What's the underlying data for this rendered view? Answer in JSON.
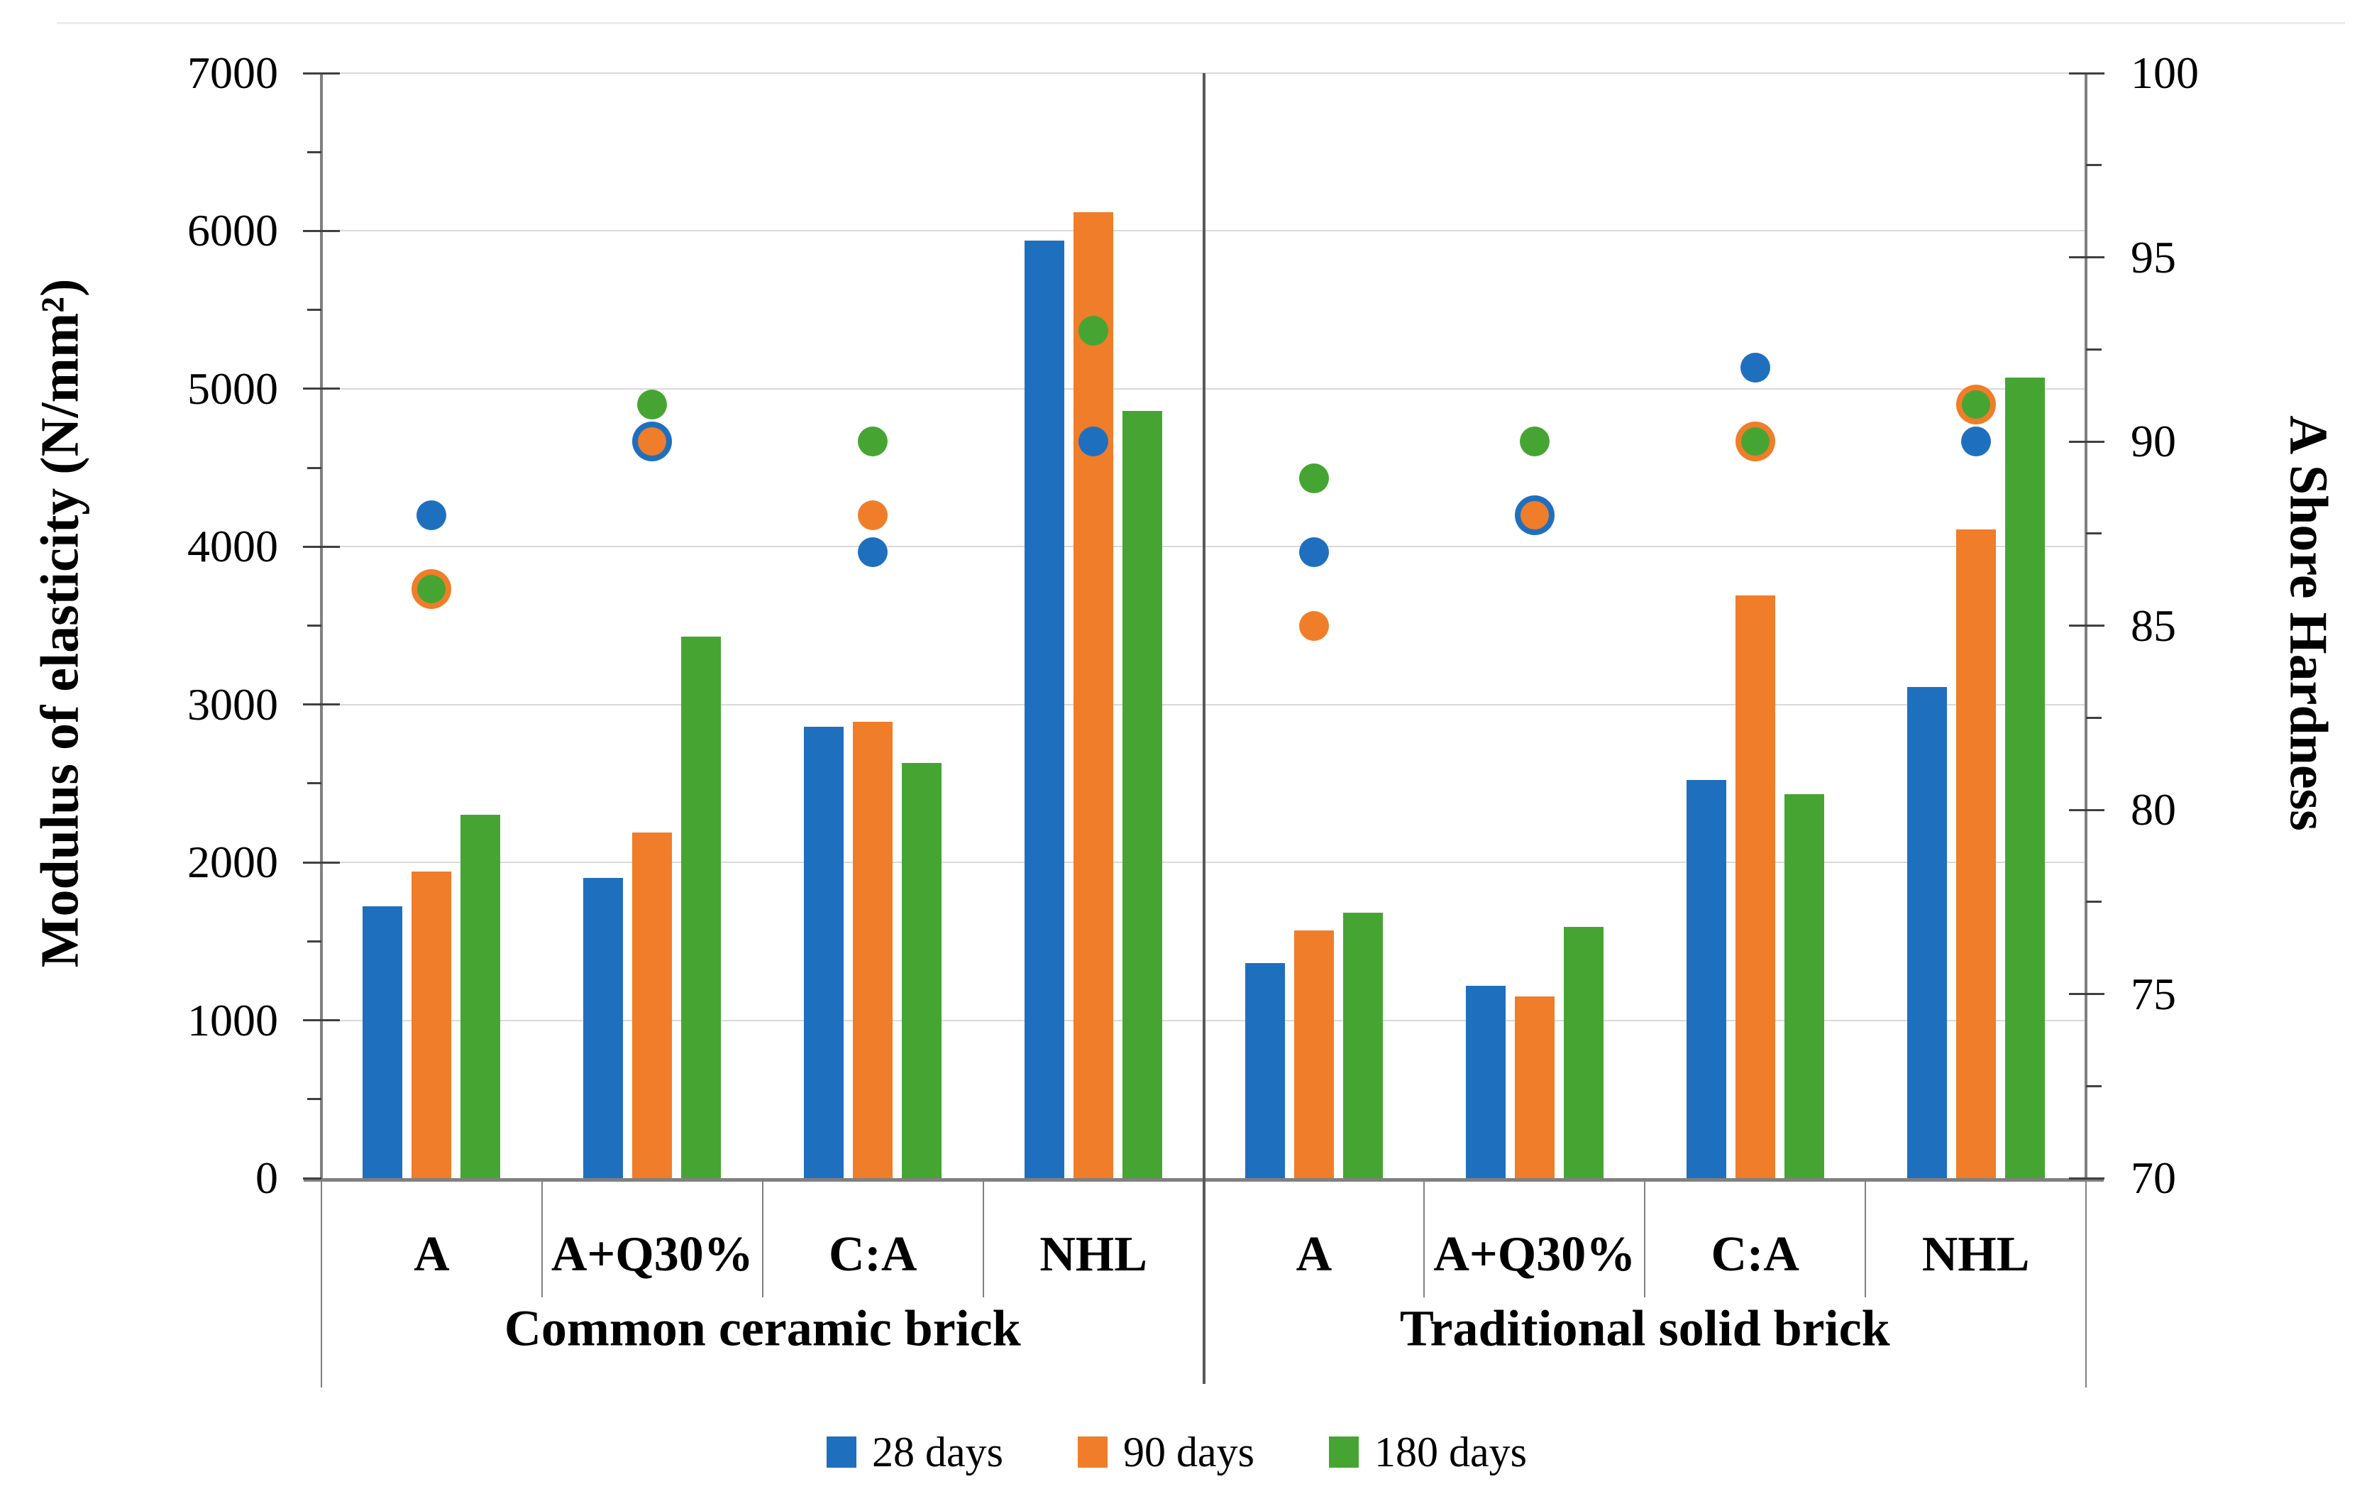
{
  "chart_data": {
    "type": "bar+scatter",
    "title": "",
    "ylabel_left": "Modulus of elasticity (N/mm²)",
    "ylabel_right": "A Shore Hardness",
    "ylim_left": [
      0,
      7000
    ],
    "ylim_right": [
      70,
      100
    ],
    "left_axis_tick_labels": [
      "0",
      "1000",
      "2000",
      "3000",
      "4000",
      "5000",
      "6000",
      "7000"
    ],
    "right_axis_tick_labels": [
      "70",
      "75",
      "80",
      "85",
      "90",
      "95",
      "100"
    ],
    "left_axis_major_step": 1000,
    "left_axis_minor_step": 500,
    "right_axis_major_step": 5,
    "right_axis_minor_step": 2.5,
    "grid": true,
    "legend_position": "bottom",
    "group_labels": [
      "Common ceramic brick",
      "Traditional solid brick"
    ],
    "categories": [
      "A",
      "A+Q30%",
      "C:A",
      "NHL",
      "A",
      "A+Q30%",
      "C:A",
      "NHL"
    ],
    "bar_series": [
      {
        "name": "28 days",
        "color": "#1F6FBF",
        "values": [
          1720,
          1900,
          2860,
          5940,
          1360,
          1220,
          2520,
          3110
        ]
      },
      {
        "name": "90 days",
        "color": "#F07D29",
        "values": [
          1940,
          2190,
          2890,
          6120,
          1570,
          1150,
          3690,
          4110
        ]
      },
      {
        "name": "180 days",
        "color": "#46A532",
        "values": [
          2300,
          3430,
          2630,
          4860,
          1680,
          1590,
          2430,
          5070
        ]
      }
    ],
    "dot_series": [
      {
        "name": "28 days",
        "color": "#1F6FBF",
        "values": [
          88,
          90,
          87,
          90,
          87,
          88,
          92,
          90
        ]
      },
      {
        "name": "90 days",
        "color": "#F07D29",
        "values": [
          86,
          90,
          88,
          91,
          85,
          88,
          90,
          91
        ]
      },
      {
        "name": "180 days",
        "color": "#46A532",
        "values": [
          86,
          91,
          90,
          93,
          89,
          90,
          90,
          91
        ]
      }
    ]
  },
  "legend": {
    "items": [
      {
        "label": "28 days",
        "color": "#1F6FBF"
      },
      {
        "label": "90 days",
        "color": "#F07D29"
      },
      {
        "label": "180 days",
        "color": "#46A532"
      }
    ]
  },
  "colors": {
    "gridline": "#d9d9d9",
    "axis": "#808080",
    "tick": "#404040",
    "text": "#000000"
  }
}
